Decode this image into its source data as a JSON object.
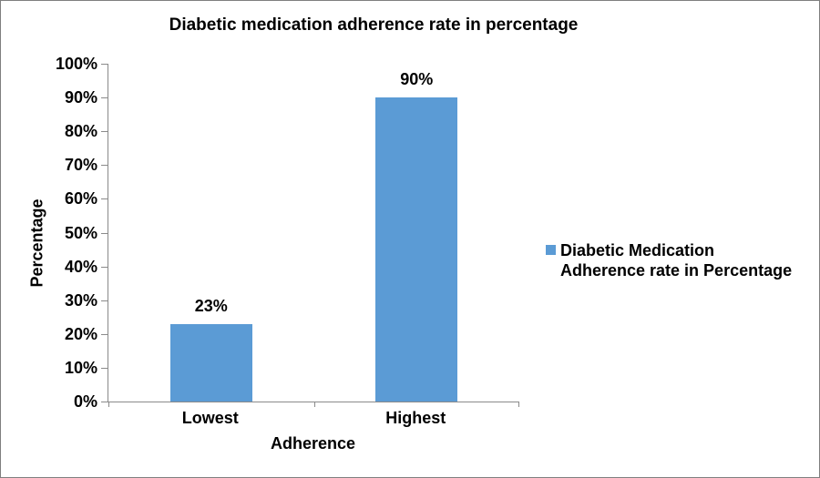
{
  "chart_data": {
    "type": "bar",
    "title": "Diabetic medication adherence rate in percentage",
    "xlabel": "Adherence",
    "ylabel": "Percentage",
    "categories": [
      "Lowest",
      "Highest"
    ],
    "values": [
      23,
      90
    ],
    "data_labels": [
      "23%",
      "90%"
    ],
    "ylim": [
      0,
      100
    ],
    "ytick_step": 10,
    "ytick_suffix": "%",
    "grid": false,
    "legend": {
      "position": "right",
      "label": "Diabetic Medication Adherence rate in Percentage",
      "lines": [
        "Diabetic Medication",
        "Adherence rate in Percentage"
      ]
    },
    "colors": {
      "bar": "#5B9BD5",
      "axis": "#8A8A8A",
      "frame_border": "#7F7F7F",
      "text": "#000000"
    }
  }
}
